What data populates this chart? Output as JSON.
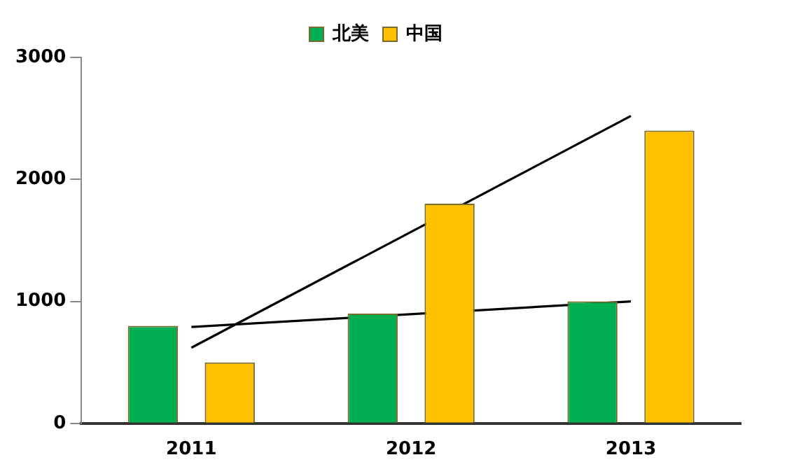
{
  "chart_data": {
    "type": "bar",
    "categories": [
      "2011",
      "2012",
      "2013"
    ],
    "series": [
      {
        "name": "北美",
        "color": "#00b050",
        "values": [
          800,
          900,
          1000
        ]
      },
      {
        "name": "中国",
        "color": "#ffc000",
        "values": [
          500,
          1800,
          2400
        ]
      },
      {
        "type": "line",
        "color": "#000000",
        "values": [
          620,
          null,
          2520
        ]
      },
      {
        "type": "line",
        "color": "#000000",
        "values": [
          790,
          null,
          1000
        ]
      }
    ],
    "ylim": [
      0,
      3000
    ],
    "yticks": [
      0,
      1000,
      2000,
      3000
    ],
    "grid": false,
    "legend": "top",
    "marker": "none",
    "line_style": "solid"
  }
}
